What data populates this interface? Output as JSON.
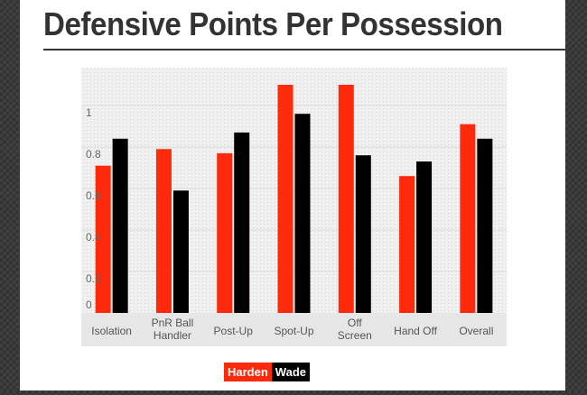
{
  "page": {
    "title": "Defensive Points Per Possession"
  },
  "colors": {
    "harden": "#ff2a0c",
    "wade": "#000000",
    "plot_bg": "#f0f0f0",
    "axis_bg": "#e6e6e6"
  },
  "chart_data": {
    "type": "bar",
    "title": "Defensive Points Per Possession",
    "categories": [
      [
        "Isolation"
      ],
      [
        "PnR Ball",
        "Handler"
      ],
      [
        "Post-Up"
      ],
      [
        "Spot-Up"
      ],
      [
        "Off",
        "Screen"
      ],
      [
        "Hand Off"
      ],
      [
        "Overall"
      ]
    ],
    "series": [
      {
        "name": "Harden",
        "color": "#ff2a0c",
        "values": [
          0.71,
          0.79,
          0.77,
          1.1,
          1.1,
          0.66,
          0.91
        ]
      },
      {
        "name": "Wade",
        "color": "#000000",
        "values": [
          0.84,
          0.59,
          0.87,
          0.96,
          0.76,
          0.73,
          0.84
        ]
      }
    ],
    "yticks": [
      "0",
      "0.2",
      "0.4",
      "0.6",
      "0.8",
      "1"
    ],
    "ylim": [
      0,
      1.15
    ],
    "grid": true,
    "legend": "bottom-center"
  }
}
